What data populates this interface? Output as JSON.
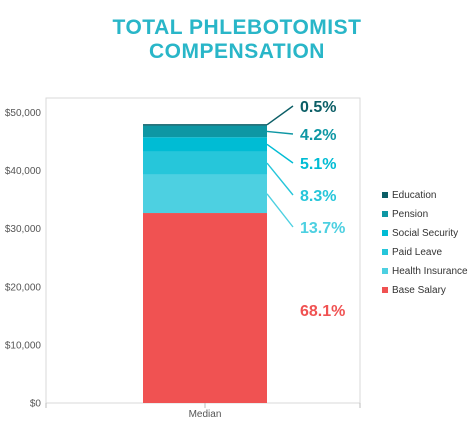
{
  "colors": {
    "title": "#29b6c8",
    "base_salary": "#f05252",
    "health_insurance": "#4dd0e1",
    "paid_leave": "#26c6da",
    "social_security": "#00bcd4",
    "pension": "#0e97a4",
    "education": "#0b5e66"
  },
  "chart_data": {
    "type": "bar",
    "stacked": true,
    "title_lines": [
      "TOTAL PHLEBOTOMIST",
      "COMPENSATION"
    ],
    "categories": [
      "Median"
    ],
    "y_ticks": [
      "$0",
      "$10,000",
      "$20,000",
      "$30,000",
      "$40,000",
      "$50,000"
    ],
    "ylim": [
      0,
      52500
    ],
    "total": 48000,
    "series": [
      {
        "name": "Base Salary",
        "value": 32700,
        "label": "68.1%",
        "color": "#f05252"
      },
      {
        "name": "Health Insurance",
        "value": 6600,
        "label": "13.7%",
        "color": "#4dd0e1"
      },
      {
        "name": "Paid Leave",
        "value": 4000,
        "label": "8.3%",
        "color": "#26c6da"
      },
      {
        "name": "Social Security",
        "value": 2450,
        "label": "5.1%",
        "color": "#00bcd4"
      },
      {
        "name": "Pension",
        "value": 2000,
        "label": "4.2%",
        "color": "#0e97a4"
      },
      {
        "name": "Education",
        "value": 250,
        "label": "0.5%",
        "color": "#0b5e66"
      }
    ],
    "legend_position": "right",
    "grid": false
  }
}
